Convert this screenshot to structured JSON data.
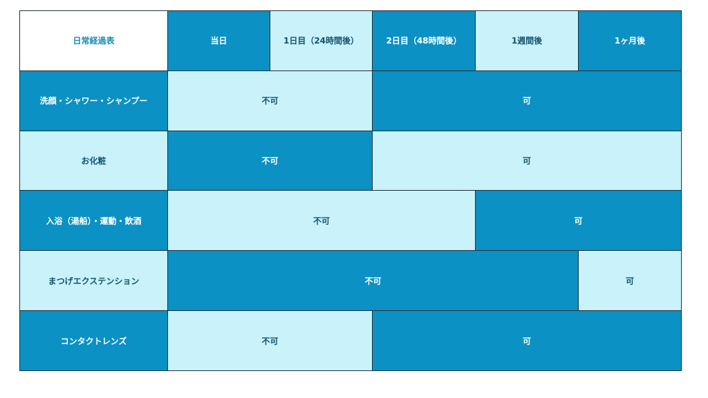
{
  "table": {
    "corner": "日常経過表",
    "columns": [
      "当日",
      "1日目（24時間後）",
      "2日目（48時間後）",
      "1週間後",
      "1ヶ月後"
    ],
    "rows": [
      {
        "label": "洗顔・シャワー・シャンプー",
        "segments": [
          {
            "text": "不可",
            "span": 2
          },
          {
            "text": "可",
            "span": 3
          }
        ]
      },
      {
        "label": "お化粧",
        "segments": [
          {
            "text": "不可",
            "span": 2
          },
          {
            "text": "可",
            "span": 3
          }
        ]
      },
      {
        "label": "入浴（湯船）・運動・飲酒",
        "segments": [
          {
            "text": "不可",
            "span": 3
          },
          {
            "text": "可",
            "span": 2
          }
        ]
      },
      {
        "label": "まつげエクステンション",
        "segments": [
          {
            "text": "不可",
            "span": 4
          },
          {
            "text": "可",
            "span": 1
          }
        ]
      },
      {
        "label": "コンタクトレンズ",
        "segments": [
          {
            "text": "不可",
            "span": 2
          },
          {
            "text": "可",
            "span": 3
          }
        ]
      }
    ]
  },
  "colors": {
    "dark": "#0b91c3",
    "light": "#c9f2fb",
    "corner_text": "#1b8cb8"
  }
}
